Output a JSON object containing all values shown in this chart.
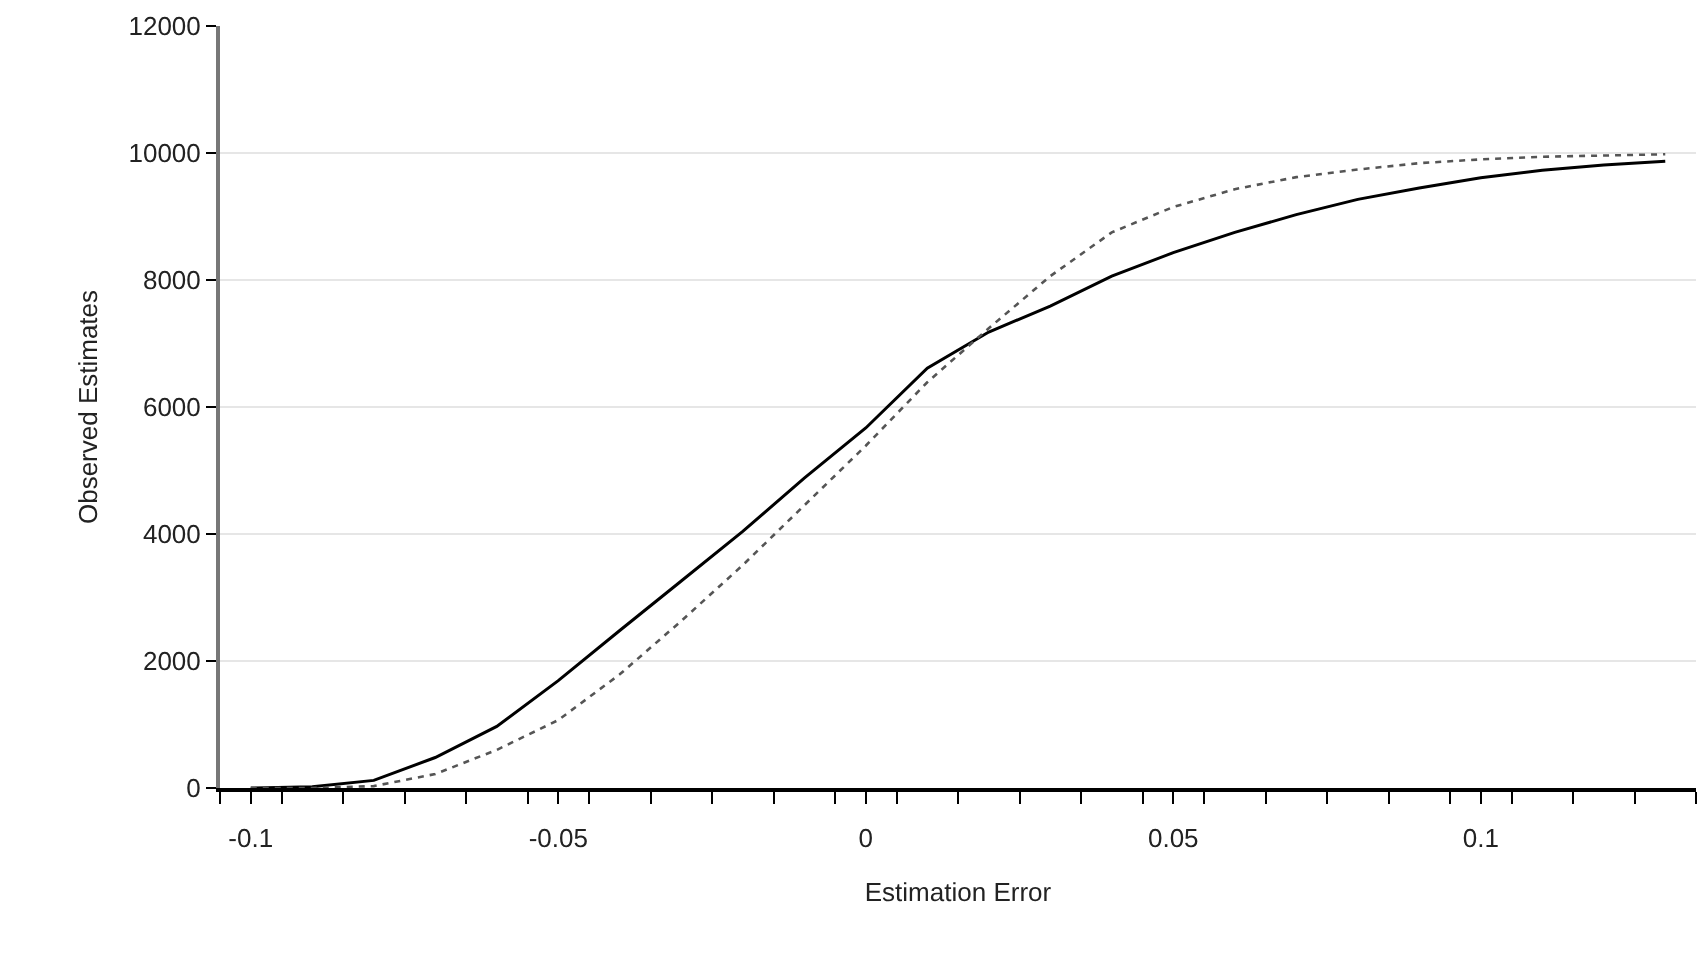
{
  "chart_data": {
    "type": "line",
    "xlabel": "Estimation Error",
    "ylabel": "Observed Estimates",
    "x": [
      -0.1,
      -0.09,
      -0.08,
      -0.07,
      -0.06,
      -0.05,
      -0.04,
      -0.03,
      -0.02,
      -0.01,
      0,
      0.01,
      0.02,
      0.03,
      0.04,
      0.05,
      0.06,
      0.07,
      0.08,
      0.09,
      0.1,
      0.11,
      0.12,
      0.13
    ],
    "series": [
      {
        "color": "#000000",
        "line_style": "solid",
        "values": [
          0,
          20,
          120,
          480,
          970,
          1690,
          2480,
          3260,
          4040,
          4880,
          5670,
          6610,
          7180,
          7590,
          8060,
          8430,
          8750,
          9030,
          9270,
          9450,
          9610,
          9730,
          9810,
          9870
        ]
      },
      {
        "color": "#555555",
        "line_style": "dotted",
        "values": [
          0,
          0,
          30,
          220,
          600,
          1070,
          1790,
          2630,
          3510,
          4450,
          5390,
          6390,
          7240,
          8060,
          8750,
          9150,
          9430,
          9620,
          9740,
          9840,
          9900,
          9940,
          9960,
          9980
        ]
      }
    ],
    "xlim": [
      -0.105,
      0.135
    ],
    "xticks": [
      {
        "value": -0.105,
        "label": null
      },
      -0.1,
      {
        "value": -0.095,
        "label": null
      },
      {
        "value": -0.085,
        "label": null
      },
      {
        "value": -0.075,
        "label": null
      },
      {
        "value": -0.065,
        "label": null
      },
      {
        "value": -0.055,
        "label": null
      },
      -0.05,
      {
        "value": -0.045,
        "label": null
      },
      {
        "value": -0.035,
        "label": null
      },
      {
        "value": -0.025,
        "label": null
      },
      {
        "value": -0.015,
        "label": null
      },
      {
        "value": -0.005,
        "label": null
      },
      0,
      {
        "value": 0.005,
        "label": null
      },
      {
        "value": 0.015,
        "label": null
      },
      {
        "value": 0.025,
        "label": null
      },
      {
        "value": 0.035,
        "label": null
      },
      {
        "value": 0.045,
        "label": null
      },
      0.05,
      {
        "value": 0.055,
        "label": null
      },
      {
        "value": 0.065,
        "label": null
      },
      {
        "value": 0.075,
        "label": null
      },
      {
        "value": 0.085,
        "label": null
      },
      {
        "value": 0.095,
        "label": null
      },
      0.1,
      {
        "value": 0.105,
        "label": null
      },
      {
        "value": 0.115,
        "label": null
      },
      {
        "value": 0.125,
        "label": null
      },
      {
        "value": 0.135,
        "label": null
      }
    ],
    "ylim": [
      0,
      12000
    ],
    "yticks": [
      0,
      2000,
      4000,
      6000,
      8000,
      10000,
      12000
    ],
    "grid": "y",
    "marker": "none"
  }
}
